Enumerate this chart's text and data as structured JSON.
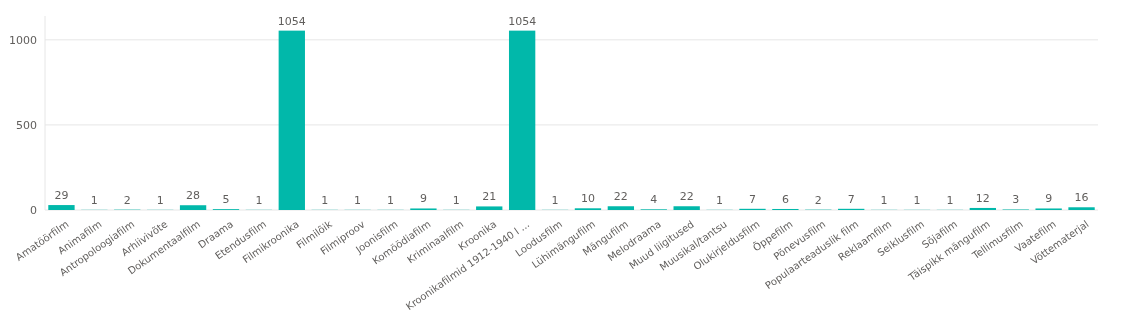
{
  "chart_data": {
    "type": "bar",
    "categories": [
      "Amatöörfilm",
      "Animafilm",
      "Antropoloogiafilm",
      "Arhiivivõte",
      "Dokumentaalfilm",
      "Draama",
      "Etendusfilm",
      "Filmikroonika",
      "Filmilõik",
      "Filmiproov",
      "Joonisfilm",
      "Komöödiafilm",
      "Kriminaalfilm",
      "Kroonika",
      "Kroonikafilmid 1912-1940 l ...",
      "Loodusfilm",
      "Lühimängufilm",
      "Mängufilm",
      "Melodraama",
      "Muud liigitused",
      "Muusikal/tantsu",
      "Olukirjeldusfilm",
      "Õppefilm",
      "Põnevusfilm",
      "Populaarteaduslik film",
      "Reklaamfilm",
      "Seiklusfilm",
      "Sõjafilm",
      "Täispikk mängufilm",
      "Tellimusfilm",
      "Vaatefilm",
      "Võttematerjal"
    ],
    "values": [
      29,
      1,
      2,
      1,
      28,
      5,
      1,
      1054,
      1,
      1,
      1,
      9,
      1,
      21,
      1054,
      1,
      10,
      22,
      4,
      22,
      1,
      7,
      6,
      2,
      7,
      1,
      1,
      1,
      12,
      3,
      9,
      16
    ],
    "color": "#01b8aa",
    "ylim": [
      0,
      1140
    ],
    "yticks": [
      0,
      500,
      1000
    ],
    "grid": "y",
    "data_labels": true
  }
}
